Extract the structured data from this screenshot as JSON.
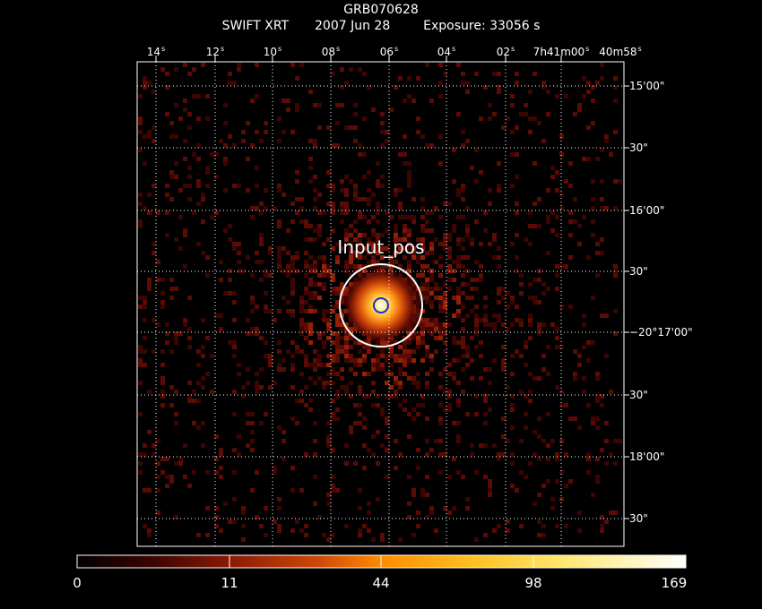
{
  "header": {
    "target": "GRB070628",
    "instrument": "SWIFT XRT",
    "date": "2007 Jun 28",
    "exposure": "Exposure: 33056 s"
  },
  "top_axis": [
    {
      "main": "14",
      "unit": "s"
    },
    {
      "main": "12",
      "unit": "s"
    },
    {
      "main": "10",
      "unit": "s"
    },
    {
      "main": "08",
      "unit": "s"
    },
    {
      "main": "06",
      "unit": "s"
    },
    {
      "main": "04",
      "unit": "s"
    },
    {
      "main": "02",
      "unit": "s"
    },
    {
      "main": "7h41m00",
      "unit": "s"
    },
    {
      "main": "40m58",
      "unit": "s"
    }
  ],
  "right_axis": [
    "15'00\"",
    "30\"",
    "16'00\"",
    "30\"",
    "−20°17'00\"",
    "30\"",
    "18'00\"",
    "30\""
  ],
  "region_label": "Input_pos",
  "colorbar": {
    "labels": [
      "0",
      "11",
      "44",
      "98",
      "169"
    ]
  },
  "colors": {
    "frame": "#ffffff",
    "grid": "#ffffff",
    "source_circle": "#ffffff",
    "inner_circle": "#1a2bd6",
    "background": "#000000"
  }
}
